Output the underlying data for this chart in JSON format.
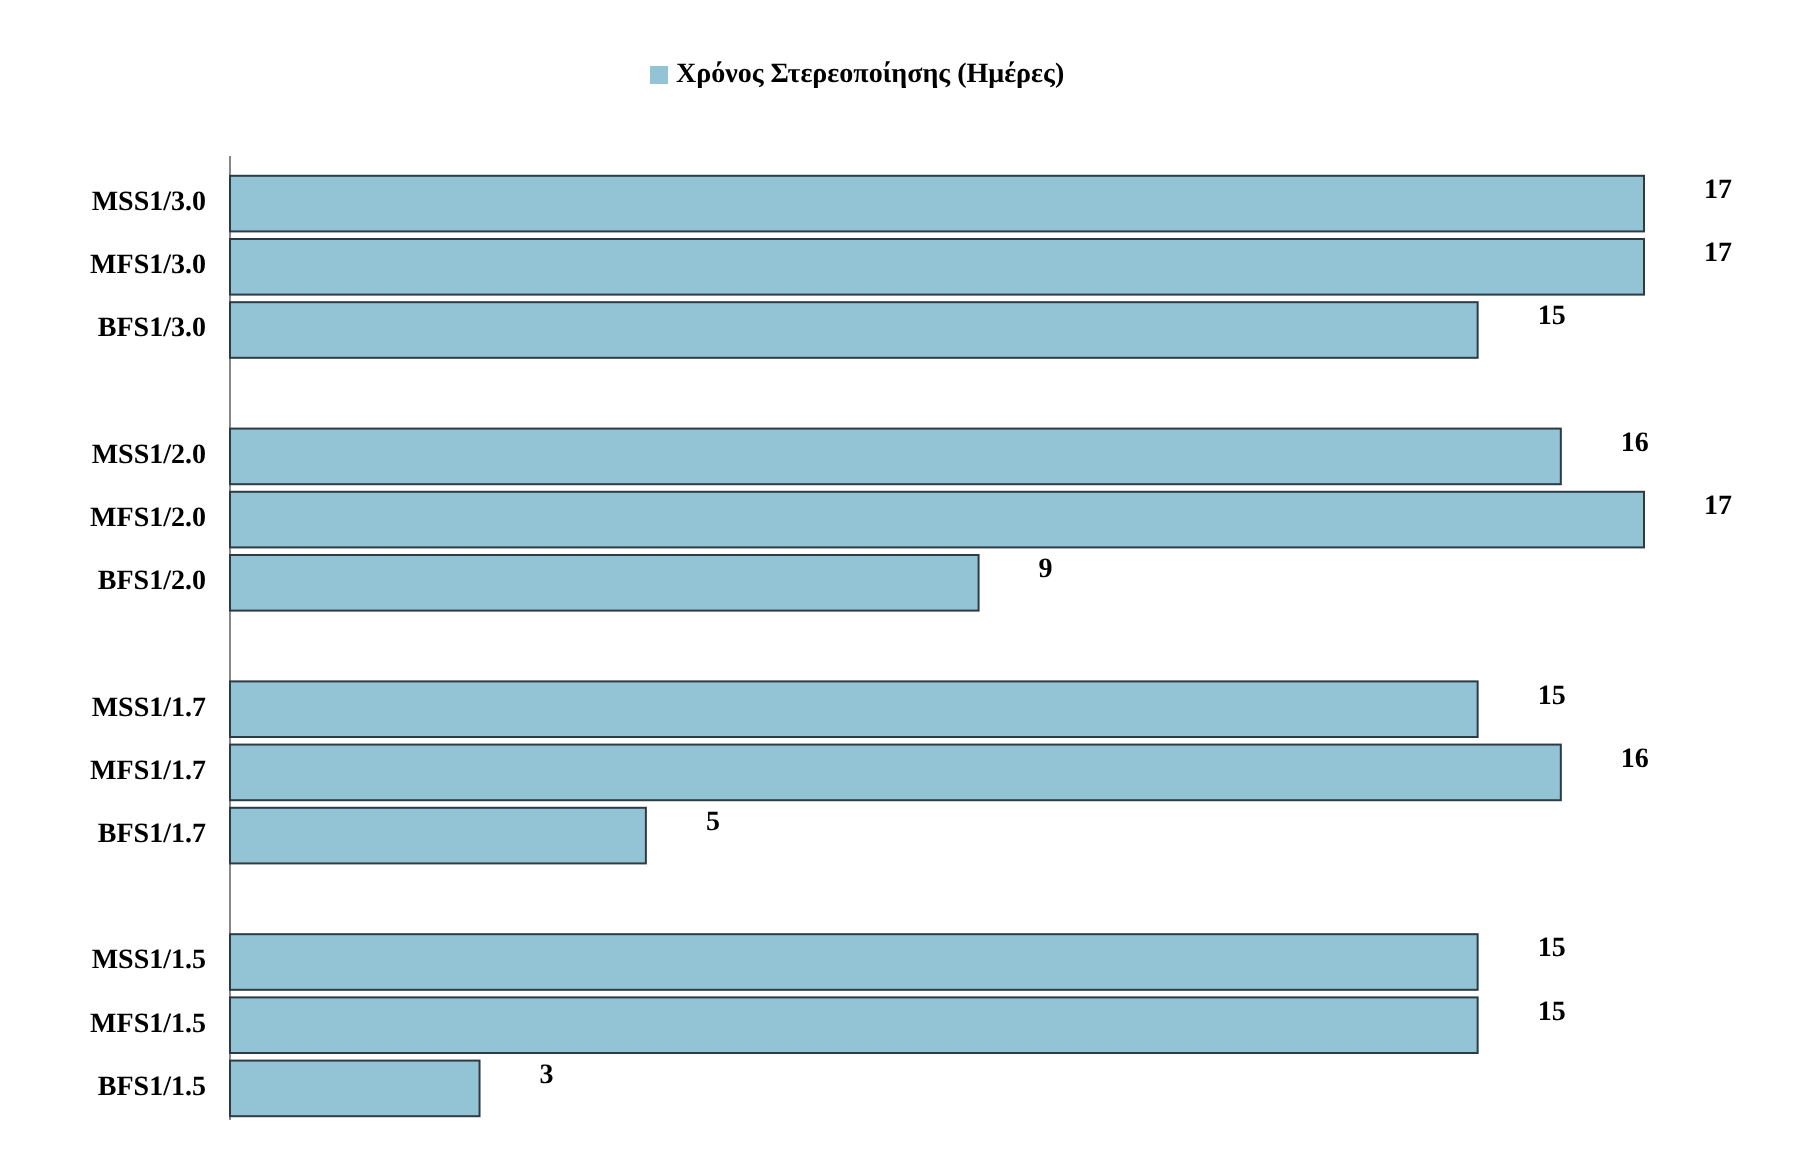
{
  "chart_data": {
    "type": "bar",
    "orientation": "horizontal",
    "categories": [
      "MSS1/3.0",
      "MFS1/3.0",
      "BFS1/3.0",
      null,
      "MSS1/2.0",
      "MFS1/2.0",
      "BFS1/2.0",
      null,
      "MSS1/1.7",
      "MFS1/1.7",
      "BFS1/1.7",
      null,
      "MSS1/1.5",
      "MFS1/1.5",
      "BFS1/1.5"
    ],
    "series": [
      {
        "name": "Χρόνος Στερεοποίησης (Ημέρες)",
        "color": "#92c4d6",
        "values": [
          17,
          17,
          15,
          null,
          16,
          17,
          9,
          null,
          15,
          16,
          5,
          null,
          15,
          15,
          3
        ]
      }
    ],
    "data_labels": true,
    "legend": "top",
    "grid": false
  }
}
